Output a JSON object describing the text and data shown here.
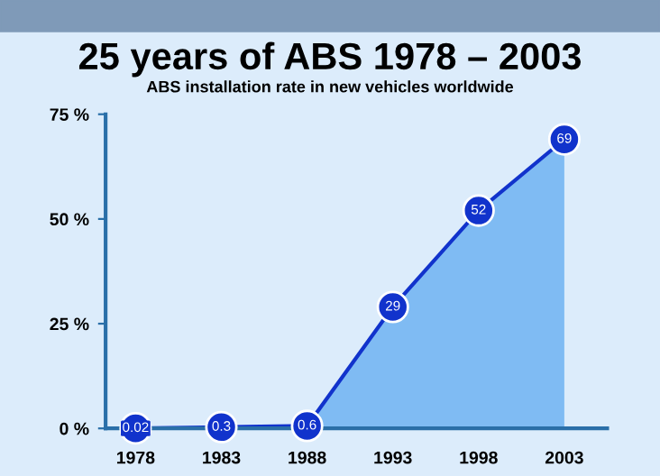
{
  "chart_data": {
    "type": "area",
    "title": "25 years of ABS 1978 – 2003",
    "subtitle": "ABS installation rate in new vehicles worldwide",
    "categories": [
      "1978",
      "1983",
      "1988",
      "1993",
      "1998",
      "2003"
    ],
    "series": [
      {
        "color": "#1133cc",
        "values": [
          0.02,
          0.3,
          0.6,
          29,
          52,
          69
        ]
      }
    ],
    "value_labels": [
      "0.02",
      "0.3",
      "0.6",
      "29",
      "52",
      "69"
    ],
    "ylim": [
      0,
      75
    ],
    "yticks": [
      {
        "value": 0,
        "label": "0 %"
      },
      {
        "value": 25,
        "label": "25 %"
      },
      {
        "value": 50,
        "label": "50 %"
      },
      {
        "value": 75,
        "label": "75 %"
      }
    ],
    "marker": "circle",
    "grid": false
  }
}
